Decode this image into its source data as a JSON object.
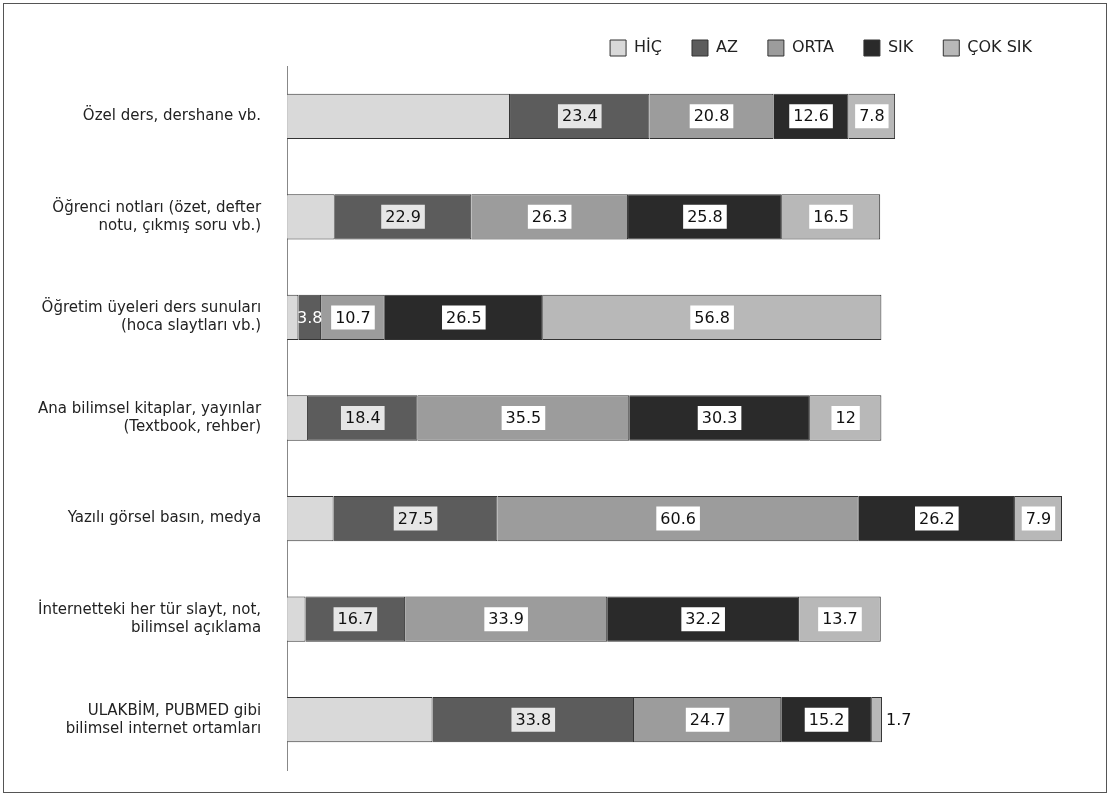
{
  "chart_data": {
    "type": "bar",
    "orientation": "horizontal",
    "stacked": true,
    "legend": "top",
    "categories": [
      "Özel ders, dershane vb.",
      "Öğrenci notları (özet, defter notu, çıkmış soru vb.)",
      "Öğretim üyeleri ders sunuları (hoca slaytları vb.)",
      "Ana bilimsel kitaplar, yayınlar (Textbook, rehber)",
      "Yazılı görsel basın, medya",
      "İnternetteki her tür slayt, not, bilimsel açıklama",
      "ULAKBİM, PUBMED gibi bilimsel internet ortamları"
    ],
    "series": [
      {
        "name": "HİÇ",
        "color": "#d9d9d9",
        "values": [
          37.4,
          8,
          1.9,
          3.5,
          7.8,
          3.1,
          24.4
        ],
        "value_labels": [
          null,
          null,
          null,
          null,
          null,
          null,
          null
        ]
      },
      {
        "name": "AZ",
        "color": "#5c5c5c",
        "values": [
          23.4,
          22.9,
          3.8,
          18.4,
          27.5,
          16.7,
          33.8
        ],
        "value_labels": [
          "23.4",
          "22.9",
          "3.8",
          "18.4",
          "27.5",
          "16.7",
          "33.8"
        ]
      },
      {
        "name": "ORTA",
        "color": "#9c9c9c",
        "values": [
          20.8,
          26.3,
          10.7,
          35.5,
          60.6,
          33.9,
          24.7
        ],
        "value_labels": [
          "20.8",
          "26.3",
          "10.7",
          "35.5",
          "60.6",
          "33.9",
          "24.7"
        ]
      },
      {
        "name": "SIK",
        "color": "#2a2a2a",
        "values": [
          12.6,
          25.8,
          26.5,
          30.3,
          26.2,
          32.2,
          15.2
        ],
        "value_labels": [
          "12.6",
          "25.8",
          "26.5",
          "30.3",
          "26.2",
          "32.2",
          "15.2"
        ]
      },
      {
        "name": "ÇOK SIK",
        "color": "#b8b8b8",
        "values": [
          7.8,
          16.5,
          56.8,
          12,
          7.9,
          13.7,
          1.7
        ],
        "value_labels": [
          "7.8",
          "16.5",
          "56.8",
          "12",
          "7.9",
          "13.7",
          "1.7"
        ]
      }
    ]
  }
}
